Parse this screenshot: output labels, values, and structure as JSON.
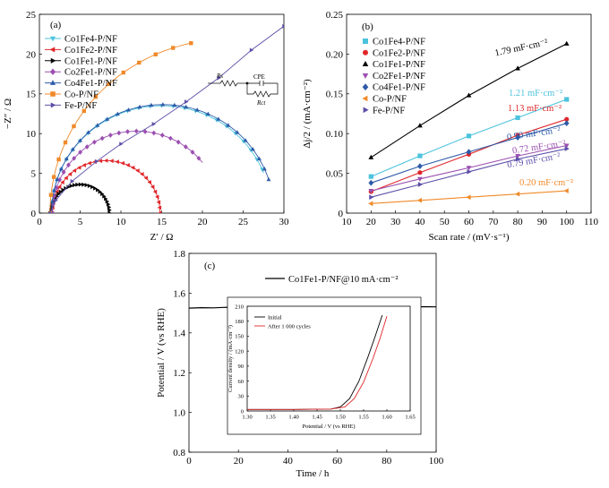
{
  "panels": {
    "a": "(a)",
    "b": "(b)",
    "c": "(c)"
  },
  "chart_data": [
    {
      "type": "scatter",
      "panel": "(a)",
      "xlabel": "Z′ / Ω",
      "ylabel": "−Z″ / Ω",
      "xlim": [
        0,
        30
      ],
      "ylim": [
        0,
        25
      ],
      "xticks": [
        0,
        5,
        10,
        15,
        20,
        25,
        30
      ],
      "yticks": [
        0,
        5,
        10,
        15,
        20,
        25
      ],
      "series": [
        {
          "name": "Co1Fe4-P/NF",
          "color": "#4cc3dd",
          "marker": "triangle-down",
          "arc": {
            "r0": 1.5,
            "r1": 28.5,
            "start": 0,
            "end": 159
          }
        },
        {
          "name": "Co1Fe2-P/NF",
          "color": "#e0262a",
          "marker": "triangle-left",
          "arc": {
            "r0": 1.6,
            "r1": 14.8,
            "start": 0,
            "end": 180
          }
        },
        {
          "name": "Co1Fe1-P/NF",
          "color": "#000000",
          "marker": "triangle-right",
          "arc": {
            "r0": 1.4,
            "r1": 8.6,
            "start": 0,
            "end": 180
          }
        },
        {
          "name": "Co2Fe1-P/NF",
          "color": "#9b4fb0",
          "marker": "diamond",
          "arc": {
            "r0": 1.6,
            "r1": 22.2,
            "start": 0,
            "end": 142
          }
        },
        {
          "name": "Co4Fe1-P/NF",
          "color": "#2e5aa8",
          "marker": "triangle-up",
          "arc": {
            "r0": 1.5,
            "r1": 28.8,
            "start": 0,
            "end": 162
          }
        },
        {
          "name": "Co-P/NF",
          "color": "#f08a2a",
          "marker": "square",
          "arc": {
            "r0": 1.3,
            "r1": 45.0,
            "start": 0,
            "end": 78
          }
        },
        {
          "name": "Fe-P/NF",
          "color": "#5b4fa8",
          "marker": "triangle-right",
          "line": [
            [
              1.3,
              0
            ],
            [
              2.0,
              1.6
            ],
            [
              4.0,
              4.0
            ],
            [
              7.0,
              6.5
            ],
            [
              10.0,
              8.7
            ],
            [
              14.0,
              11.2
            ],
            [
              18.0,
              14.0
            ],
            [
              22.0,
              17.0
            ],
            [
              26.0,
              20.5
            ],
            [
              30.0,
              23.5
            ]
          ]
        }
      ],
      "inset": {
        "r_s": "Rs",
        "cpe": "CPE",
        "r_ct": "Rct"
      }
    },
    {
      "type": "scatter",
      "panel": "(b)",
      "xlabel": "Scan rate / (mV·s⁻¹)",
      "ylabel": "Δj/2 / (mA·cm⁻²)",
      "xlim": [
        10,
        110
      ],
      "ylim": [
        0,
        0.25
      ],
      "xticks": [
        10,
        20,
        30,
        40,
        50,
        60,
        70,
        80,
        90,
        100,
        110
      ],
      "yticks": [
        0,
        0.05,
        0.1,
        0.15,
        0.2,
        0.25
      ],
      "ytick_labels": [
        "0",
        "0.05",
        "0.10",
        "0.15",
        "0.20",
        "0.25"
      ],
      "x": [
        20,
        40,
        60,
        80,
        100
      ],
      "series": [
        {
          "name": "Co1Fe4-P/NF",
          "color": "#4cc3dd",
          "marker": "square",
          "values": [
            0.046,
            0.072,
            0.097,
            0.12,
            0.143
          ],
          "slope_label": "1.21 mF·cm⁻²"
        },
        {
          "name": "Co1Fe2-P/NF",
          "color": "#e0262a",
          "marker": "circle",
          "values": [
            0.027,
            0.051,
            0.074,
            0.098,
            0.118
          ],
          "slope_label": "1.13 mF·cm⁻²"
        },
        {
          "name": "Co1Fe1-P/NF",
          "color": "#000000",
          "marker": "triangle-up",
          "values": [
            0.07,
            0.11,
            0.148,
            0.182,
            0.213
          ],
          "slope_label": "1.79 mF·cm⁻²"
        },
        {
          "name": "Co2Fe1-P/NF",
          "color": "#9b4fb0",
          "marker": "triangle-down",
          "values": [
            0.028,
            0.043,
            0.057,
            0.072,
            0.085
          ],
          "slope_label": "0.72 mF·cm⁻²"
        },
        {
          "name": "Co4Fe1-P/NF",
          "color": "#2e5aa8",
          "marker": "diamond",
          "values": [
            0.038,
            0.059,
            0.077,
            0.095,
            0.113
          ],
          "slope_label": "0.90 mF·cm⁻²"
        },
        {
          "name": "Co-P/NF",
          "color": "#f08a2a",
          "marker": "triangle-left",
          "values": [
            0.012,
            0.016,
            0.02,
            0.024,
            0.028
          ],
          "slope_label": "0.20 mF·cm⁻²"
        },
        {
          "name": "Fe-P/NF",
          "color": "#5b4fa8",
          "marker": "triangle-right",
          "values": [
            0.02,
            0.036,
            0.052,
            0.068,
            0.081
          ],
          "slope_label": "0.79 mF·cm⁻²"
        }
      ]
    },
    {
      "type": "line",
      "panel": "(c)",
      "xlabel": "Time / h",
      "ylabel": "Potential / V (vs RHE)",
      "xlim": [
        0,
        100
      ],
      "ylim": [
        0.8,
        1.8
      ],
      "xticks": [
        0,
        20,
        40,
        60,
        80,
        100
      ],
      "yticks": [
        0.8,
        1.0,
        1.2,
        1.4,
        1.6,
        1.8
      ],
      "ytick_labels": [
        "0.8",
        "1.0",
        "1.2",
        "1.4",
        "1.6",
        "1.8"
      ],
      "series": [
        {
          "name": "Co1Fe1-P/NF@10 mA·cm⁻²",
          "color": "#000000",
          "x": [
            0,
            5,
            10,
            15,
            20,
            25,
            30,
            35,
            40,
            45,
            50,
            55,
            60,
            65,
            70,
            75,
            80,
            85,
            88,
            90,
            95,
            100
          ],
          "values": [
            1.525,
            1.527,
            1.526,
            1.529,
            1.527,
            1.528,
            1.526,
            1.528,
            1.527,
            1.529,
            1.527,
            1.528,
            1.527,
            1.529,
            1.528,
            1.53,
            1.528,
            1.532,
            1.538,
            1.53,
            1.532,
            1.531
          ]
        }
      ],
      "inset": {
        "type": "line",
        "xlabel": "Potential / V (vs RHE)",
        "ylabel": "Current density / (mA·cm⁻²)",
        "xlim": [
          1.3,
          1.65
        ],
        "ylim": [
          0,
          210
        ],
        "xticks": [
          1.3,
          1.35,
          1.4,
          1.45,
          1.5,
          1.55,
          1.6,
          1.65
        ],
        "xtick_labels": [
          "1.30",
          "1.35",
          "1.40",
          "1.45",
          "1.50",
          "1.55",
          "1.60",
          "1.65"
        ],
        "yticks": [
          0,
          30,
          60,
          90,
          120,
          150,
          180,
          210
        ],
        "series": [
          {
            "name": "Initial",
            "color": "#000000",
            "x": [
              1.3,
              1.4,
              1.48,
              1.5,
              1.52,
              1.54,
              1.56,
              1.575,
              1.59
            ],
            "values": [
              3,
              3,
              4,
              8,
              25,
              60,
              110,
              150,
              192
            ]
          },
          {
            "name": "After 1 000 cycles",
            "color": "#e0262a",
            "x": [
              1.3,
              1.4,
              1.48,
              1.51,
              1.53,
              1.55,
              1.57,
              1.585,
              1.6
            ],
            "values": [
              3,
              3,
              4,
              8,
              25,
              58,
              105,
              145,
              190
            ]
          }
        ]
      }
    }
  ]
}
